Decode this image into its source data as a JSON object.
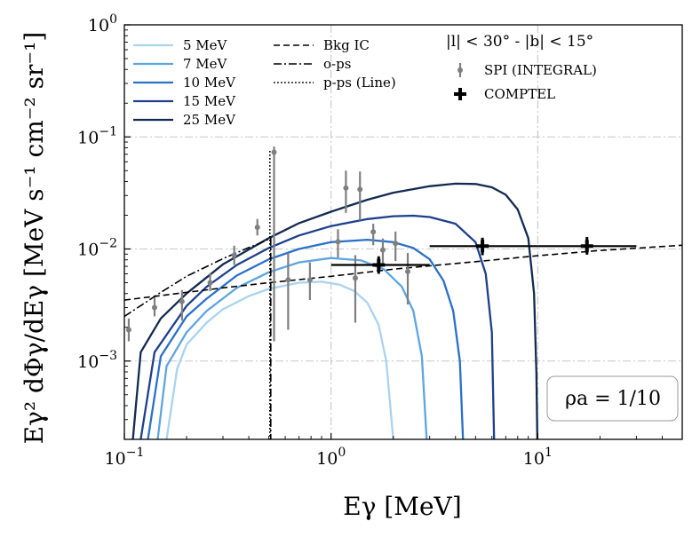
{
  "chart_data": {
    "type": "line",
    "xlabel": "Eγ [MeV]",
    "ylabel": "Eγ² dΦγ/dEγ [MeV s⁻¹ cm⁻² sr⁻¹]",
    "xscale": "log",
    "yscale": "log",
    "xlim": [
      0.1,
      50
    ],
    "ylim": [
      0.0002,
      1
    ],
    "x_ticks": [
      {
        "value": 0.1,
        "mant": "10",
        "exp": "−1"
      },
      {
        "value": 1,
        "mant": "10",
        "exp": "0"
      },
      {
        "value": 10,
        "mant": "10",
        "exp": "1"
      }
    ],
    "y_ticks": [
      {
        "value": 0.001,
        "mant": "10",
        "exp": "−3"
      },
      {
        "value": 0.01,
        "mant": "10",
        "exp": "−2"
      },
      {
        "value": 0.1,
        "mant": "10",
        "exp": "−1"
      },
      {
        "value": 1,
        "mant": "10",
        "exp": "0"
      }
    ],
    "grid": true,
    "legend_position": "top",
    "annotation_region": "|l| < 30° - |b| < 15°",
    "annotation_box": "ρa = 1/10",
    "series": [
      {
        "name": "5 MeV",
        "color": "#a9d3ef",
        "style": "solid",
        "points": [
          [
            0.16,
            0.0002
          ],
          [
            0.18,
            0.00085
          ],
          [
            0.2,
            0.0014
          ],
          [
            0.25,
            0.0022
          ],
          [
            0.3,
            0.0029
          ],
          [
            0.4,
            0.0038
          ],
          [
            0.5,
            0.0044
          ],
          [
            0.7,
            0.005
          ],
          [
            0.9,
            0.0051
          ],
          [
            1.1,
            0.0048
          ],
          [
            1.3,
            0.0042
          ],
          [
            1.5,
            0.0033
          ],
          [
            1.7,
            0.0021
          ],
          [
            1.85,
            0.001
          ],
          [
            2.0,
            0.0002
          ]
        ]
      },
      {
        "name": "7 MeV",
        "color": "#5ea5e0",
        "style": "solid",
        "points": [
          [
            0.145,
            0.0002
          ],
          [
            0.16,
            0.0009
          ],
          [
            0.2,
            0.0018
          ],
          [
            0.25,
            0.0028
          ],
          [
            0.35,
            0.0045
          ],
          [
            0.5,
            0.0062
          ],
          [
            0.7,
            0.0076
          ],
          [
            1.0,
            0.0083
          ],
          [
            1.4,
            0.0079
          ],
          [
            1.8,
            0.0066
          ],
          [
            2.2,
            0.0046
          ],
          [
            2.5,
            0.0028
          ],
          [
            2.75,
            0.0011
          ],
          [
            2.9,
            0.0002
          ]
        ]
      },
      {
        "name": "10 MeV",
        "color": "#2a70c8",
        "style": "solid",
        "points": [
          [
            0.13,
            0.0002
          ],
          [
            0.15,
            0.0011
          ],
          [
            0.2,
            0.0025
          ],
          [
            0.25,
            0.0036
          ],
          [
            0.35,
            0.0058
          ],
          [
            0.5,
            0.0081
          ],
          [
            0.7,
            0.01
          ],
          [
            1.0,
            0.0115
          ],
          [
            1.5,
            0.0121
          ],
          [
            2.0,
            0.0115
          ],
          [
            2.5,
            0.0102
          ],
          [
            3.0,
            0.0081
          ],
          [
            3.5,
            0.0052
          ],
          [
            3.9,
            0.0028
          ],
          [
            4.2,
            0.001
          ],
          [
            4.35,
            0.0002
          ]
        ]
      },
      {
        "name": "15 MeV",
        "color": "#1e3f8c",
        "style": "solid",
        "points": [
          [
            0.12,
            0.0002
          ],
          [
            0.14,
            0.0012
          ],
          [
            0.2,
            0.0031
          ],
          [
            0.25,
            0.0046
          ],
          [
            0.35,
            0.0072
          ],
          [
            0.5,
            0.0102
          ],
          [
            0.7,
            0.0132
          ],
          [
            1.0,
            0.016
          ],
          [
            1.5,
            0.0185
          ],
          [
            2.0,
            0.0196
          ],
          [
            2.5,
            0.0198
          ],
          [
            3.0,
            0.0193
          ],
          [
            4.0,
            0.0168
          ],
          [
            5.0,
            0.0115
          ],
          [
            5.6,
            0.006
          ],
          [
            6.0,
            0.0018
          ],
          [
            6.15,
            0.0002
          ]
        ]
      },
      {
        "name": "25 MeV",
        "color": "#132a52",
        "style": "solid",
        "points": [
          [
            0.11,
            0.0002
          ],
          [
            0.12,
            0.0012
          ],
          [
            0.15,
            0.0024
          ],
          [
            0.2,
            0.004
          ],
          [
            0.3,
            0.0073
          ],
          [
            0.5,
            0.0125
          ],
          [
            0.7,
            0.017
          ],
          [
            1.0,
            0.0215
          ],
          [
            1.5,
            0.0275
          ],
          [
            2.0,
            0.0318
          ],
          [
            3.0,
            0.0363
          ],
          [
            4.0,
            0.0383
          ],
          [
            5.0,
            0.038
          ],
          [
            6.0,
            0.0355
          ],
          [
            7.0,
            0.0305
          ],
          [
            8.0,
            0.0225
          ],
          [
            9.0,
            0.0125
          ],
          [
            9.6,
            0.004
          ],
          [
            9.85,
            0.0008
          ],
          [
            9.95,
            0.0002
          ]
        ]
      },
      {
        "name": "Bkg IC",
        "color": "#000000",
        "style": "dashed",
        "points": [
          [
            0.1,
            0.0035
          ],
          [
            0.3,
            0.0045
          ],
          [
            0.5,
            0.005
          ],
          [
            1.0,
            0.0057
          ],
          [
            2.0,
            0.0066
          ],
          [
            5.0,
            0.0077
          ],
          [
            10.0,
            0.0087
          ],
          [
            20.0,
            0.0097
          ],
          [
            50.0,
            0.0108
          ]
        ]
      },
      {
        "name": "o-ps",
        "color": "#000000",
        "style": "dashdot",
        "points": [
          [
            0.1,
            0.0025
          ],
          [
            0.15,
            0.0041
          ],
          [
            0.2,
            0.0057
          ],
          [
            0.3,
            0.0082
          ],
          [
            0.4,
            0.0103
          ],
          [
            0.45,
            0.0112
          ],
          [
            0.511,
            0.0125
          ],
          [
            0.511,
            0.0002
          ]
        ]
      },
      {
        "name": "p-ps (Line)",
        "color": "#000000",
        "style": "dotted",
        "points": [
          [
            0.506,
            0.075
          ],
          [
            0.506,
            0.0002
          ]
        ]
      }
    ],
    "errorbar_series": [
      {
        "name": "SPI (INTEGRAL)",
        "color": "#7f7f7f",
        "points": [
          {
            "x": 0.105,
            "y": 0.0019,
            "ylo": 0.0015,
            "yhi": 0.0024
          },
          {
            "x": 0.14,
            "y": 0.003,
            "ylo": 0.0025,
            "yhi": 0.0037
          },
          {
            "x": 0.19,
            "y": 0.0034,
            "ylo": 0.0023,
            "yhi": 0.0043
          },
          {
            "x": 0.26,
            "y": 0.005,
            "ylo": 0.0042,
            "yhi": 0.0061
          },
          {
            "x": 0.34,
            "y": 0.0088,
            "ylo": 0.0072,
            "yhi": 0.0107
          },
          {
            "x": 0.44,
            "y": 0.0156,
            "ylo": 0.0132,
            "yhi": 0.0185
          },
          {
            "x": 0.53,
            "y": 0.073,
            "ylo": 0.0015,
            "yhi": 0.082
          },
          {
            "x": 0.62,
            "y": 0.0053,
            "ylo": 0.0019,
            "yhi": 0.0092
          },
          {
            "x": 0.79,
            "y": 0.0053,
            "ylo": 0.0035,
            "yhi": 0.0076
          },
          {
            "x": 1.08,
            "y": 0.0116,
            "ylo": 0.0084,
            "yhi": 0.015
          },
          {
            "x": 1.18,
            "y": 0.035,
            "ylo": 0.021,
            "yhi": 0.05
          },
          {
            "x": 1.31,
            "y": 0.0055,
            "ylo": 0.0022,
            "yhi": 0.0088
          },
          {
            "x": 1.38,
            "y": 0.034,
            "ylo": 0.018,
            "yhi": 0.049
          },
          {
            "x": 1.6,
            "y": 0.0142,
            "ylo": 0.0108,
            "yhi": 0.0168
          },
          {
            "x": 1.78,
            "y": 0.0098,
            "ylo": 0.0073,
            "yhi": 0.0124
          },
          {
            "x": 2.05,
            "y": 0.0112,
            "ylo": 0.0078,
            "yhi": 0.0143
          },
          {
            "x": 2.35,
            "y": 0.0063,
            "ylo": 0.0032,
            "yhi": 0.0092
          }
        ]
      },
      {
        "name": "COMPTEL",
        "color": "#000000",
        "points": [
          {
            "x": 1.7,
            "y": 0.0072,
            "xlo": 1.0,
            "xhi": 3.0,
            "ylo": 0.006,
            "yhi": 0.0086
          },
          {
            "x": 5.4,
            "y": 0.0106,
            "xlo": 3.0,
            "xhi": 10.0,
            "ylo": 0.0088,
            "yhi": 0.0126
          },
          {
            "x": 17.3,
            "y": 0.0106,
            "xlo": 10.0,
            "xhi": 30.0,
            "ylo": 0.0089,
            "yhi": 0.0128
          }
        ]
      }
    ]
  }
}
